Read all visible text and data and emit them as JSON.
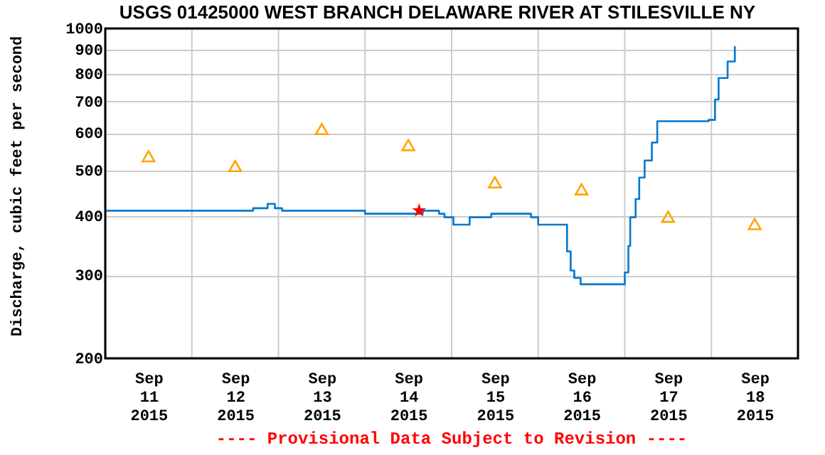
{
  "chart_data": {
    "type": "step",
    "title": "USGS 01425000 WEST BRANCH DELAWARE RIVER AT STILESVILLE NY",
    "ylabel": "Discharge, cubic feet per second",
    "annotations": [
      "---- Provisional Data Subject to Revision ----"
    ],
    "log": true,
    "grid": true,
    "xlim": [
      "2015-09-11T00:00",
      "2015-09-19T00:00"
    ],
    "xticks": [
      {
        "value": "2015-09-11T12:00",
        "label": "Sep 11 2015"
      },
      {
        "value": "2015-09-12T12:00",
        "label": "Sep 12 2015"
      },
      {
        "value": "2015-09-13T12:00",
        "label": "Sep 13 2015"
      },
      {
        "value": "2015-09-14T12:00",
        "label": "Sep 14 2015"
      },
      {
        "value": "2015-09-15T12:00",
        "label": "Sep 15 2015"
      },
      {
        "value": "2015-09-16T12:00",
        "label": "Sep 16 2015"
      },
      {
        "value": "2015-09-17T12:00",
        "label": "Sep 17 2015"
      },
      {
        "value": "2015-09-18T12:00",
        "label": "Sep 18 2015"
      },
      {
        "value": "2015-09-12T00:00",
        "label": null
      },
      {
        "value": "2015-09-13T00:00",
        "label": null
      },
      {
        "value": "2015-09-14T00:00",
        "label": null
      },
      {
        "value": "2015-09-15T00:00",
        "label": null
      },
      {
        "value": "2015-09-16T00:00",
        "label": null
      },
      {
        "value": "2015-09-17T00:00",
        "label": null
      },
      {
        "value": "2015-09-18T00:00",
        "label": null
      }
    ],
    "ylim": [
      200,
      1000
    ],
    "yticks": [
      200,
      300,
      400,
      500,
      600,
      700,
      800,
      900,
      1000
    ],
    "series": [
      {
        "color": "#0078d0",
        "line_style": "solid",
        "marker": "none",
        "x": [
          "2015-09-11T00:00",
          "2015-09-12T17:00",
          "2015-09-12T21:00",
          "2015-09-12T23:00",
          "2015-09-13T01:00",
          "2015-09-14T00:00",
          "2015-09-14T16:00",
          "2015-09-14T20:30",
          "2015-09-14T22:00",
          "2015-09-15T00:30",
          "2015-09-15T05:00",
          "2015-09-15T11:00",
          "2015-09-15T22:00",
          "2015-09-16T00:00",
          "2015-09-16T07:45",
          "2015-09-16T08:00",
          "2015-09-16T09:00",
          "2015-09-16T10:00",
          "2015-09-16T11:45",
          "2015-09-16T23:30",
          "2015-09-17T00:00",
          "2015-09-17T01:00",
          "2015-09-17T01:30",
          "2015-09-17T03:00",
          "2015-09-17T04:00",
          "2015-09-17T05:30",
          "2015-09-17T07:30",
          "2015-09-17T09:00",
          "2015-09-17T23:15",
          "2015-09-18T01:00",
          "2015-09-18T02:00",
          "2015-09-18T04:30",
          "2015-09-18T06:30"
        ],
        "values": [
          411,
          416,
          425,
          416,
          411,
          405,
          411,
          405,
          398,
          384,
          398,
          405,
          398,
          384,
          384,
          337,
          307,
          296,
          287,
          287,
          304,
          346,
          398,
          435,
          483,
          525,
          573,
          636,
          640,
          707,
          785,
          851,
          917
        ]
      },
      {
        "type": "scatter",
        "color": "#ffa500",
        "marker": "triangle",
        "x": [
          "2015-09-11T12:00",
          "2015-09-12T12:00",
          "2015-09-13T12:00",
          "2015-09-14T12:00",
          "2015-09-15T12:00",
          "2015-09-16T12:00",
          "2015-09-17T12:00",
          "2015-09-18T12:00"
        ],
        "values": [
          536,
          511,
          612,
          566,
          472,
          456,
          399,
          385
        ]
      },
      {
        "type": "scatter",
        "color": "#ff0000",
        "marker": "star",
        "x": [
          "2015-09-14T15:00"
        ],
        "values": [
          411
        ]
      }
    ]
  }
}
